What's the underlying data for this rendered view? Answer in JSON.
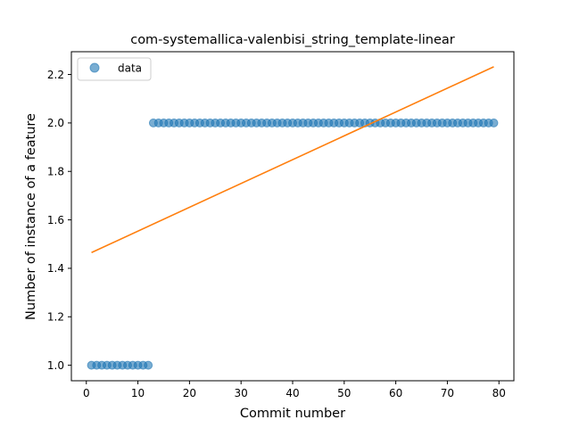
{
  "chart_data": {
    "type": "scatter",
    "title": "com-systemallica-valenbisi_string_template-linear",
    "xlabel": "Commit number",
    "ylabel": "Number of instance of a feature",
    "xlim": [
      -2.9,
      82.9
    ],
    "ylim": [
      0.936,
      2.294
    ],
    "x_ticks": [
      0,
      10,
      20,
      30,
      40,
      50,
      60,
      70,
      80
    ],
    "x_tick_labels": [
      "0",
      "10",
      "20",
      "30",
      "40",
      "50",
      "60",
      "70",
      "80"
    ],
    "y_ticks": [
      1.0,
      1.2,
      1.4,
      1.6,
      1.8,
      2.0,
      2.2
    ],
    "y_tick_labels": [
      "1.0",
      "1.2",
      "1.4",
      "1.6",
      "1.8",
      "2.0",
      "2.2"
    ],
    "legend": {
      "position": "upper-left",
      "entries": [
        "data"
      ]
    },
    "grid": false,
    "colors": {
      "data": "#1f77b4",
      "fit": "#ff7f0e"
    },
    "series": [
      {
        "name": "data",
        "kind": "scatter",
        "x": [
          1,
          2,
          3,
          4,
          5,
          6,
          7,
          8,
          9,
          10,
          11,
          12,
          13,
          14,
          15,
          16,
          17,
          18,
          19,
          20,
          21,
          22,
          23,
          24,
          25,
          26,
          27,
          28,
          29,
          30,
          31,
          32,
          33,
          34,
          35,
          36,
          37,
          38,
          39,
          40,
          41,
          42,
          43,
          44,
          45,
          46,
          47,
          48,
          49,
          50,
          51,
          52,
          53,
          54,
          55,
          56,
          57,
          58,
          59,
          60,
          61,
          62,
          63,
          64,
          65,
          66,
          67,
          68,
          69,
          70,
          71,
          72,
          73,
          74,
          75,
          76,
          77,
          78,
          79
        ],
        "y": [
          1,
          1,
          1,
          1,
          1,
          1,
          1,
          1,
          1,
          1,
          1,
          1,
          2,
          2,
          2,
          2,
          2,
          2,
          2,
          2,
          2,
          2,
          2,
          2,
          2,
          2,
          2,
          2,
          2,
          2,
          2,
          2,
          2,
          2,
          2,
          2,
          2,
          2,
          2,
          2,
          2,
          2,
          2,
          2,
          2,
          2,
          2,
          2,
          2,
          2,
          2,
          2,
          2,
          2,
          2,
          2,
          2,
          2,
          2,
          2,
          2,
          2,
          2,
          2,
          2,
          2,
          2,
          2,
          2,
          2,
          2,
          2,
          2,
          2,
          2,
          2,
          2,
          2,
          2
        ]
      },
      {
        "kind": "line",
        "x": [
          1,
          79
        ],
        "y": [
          1.465,
          2.232
        ]
      }
    ]
  }
}
